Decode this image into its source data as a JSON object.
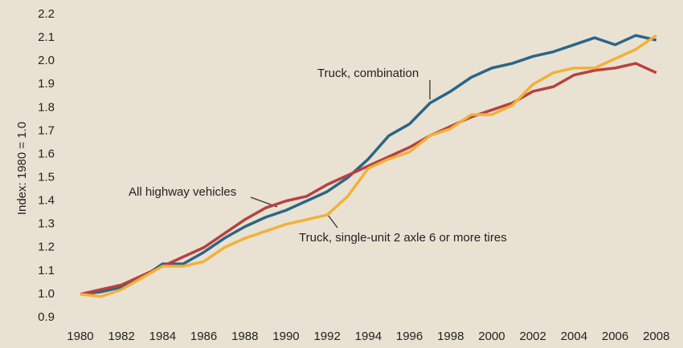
{
  "chart_data": {
    "type": "line",
    "y_label": "Index: 1980 = 1.0",
    "x": [
      1980,
      1981,
      1982,
      1983,
      1984,
      1985,
      1986,
      1987,
      1988,
      1989,
      1990,
      1991,
      1992,
      1993,
      1994,
      1995,
      1996,
      1997,
      1998,
      1999,
      2000,
      2001,
      2002,
      2003,
      2004,
      2005,
      2006,
      2007,
      2008
    ],
    "series": [
      {
        "name": "Truck, combination",
        "color": "#2b6687",
        "values": [
          1.0,
          1.01,
          1.03,
          1.07,
          1.13,
          1.13,
          1.18,
          1.24,
          1.29,
          1.33,
          1.36,
          1.4,
          1.44,
          1.5,
          1.58,
          1.68,
          1.73,
          1.82,
          1.87,
          1.93,
          1.97,
          1.99,
          2.02,
          2.04,
          2.07,
          2.1,
          2.07,
          2.11,
          2.09
        ]
      },
      {
        "name": "All highway vehicles",
        "color": "#b8413f",
        "values": [
          1.0,
          1.02,
          1.04,
          1.08,
          1.12,
          1.16,
          1.2,
          1.26,
          1.32,
          1.37,
          1.4,
          1.42,
          1.47,
          1.51,
          1.55,
          1.59,
          1.63,
          1.68,
          1.72,
          1.76,
          1.79,
          1.82,
          1.87,
          1.89,
          1.94,
          1.96,
          1.97,
          1.99,
          1.95
        ]
      },
      {
        "name": "Truck, single-unit 2 axle 6 or more tires",
        "color": "#f1b13a",
        "values": [
          1.0,
          0.99,
          1.02,
          1.07,
          1.12,
          1.12,
          1.14,
          1.2,
          1.24,
          1.27,
          1.3,
          1.32,
          1.34,
          1.42,
          1.54,
          1.58,
          1.61,
          1.68,
          1.71,
          1.77,
          1.77,
          1.81,
          1.9,
          1.95,
          1.97,
          1.97,
          2.01,
          2.05,
          2.11
        ]
      }
    ],
    "xlim": [
      1979.4,
      2008.9
    ],
    "xticks": [
      1980,
      1982,
      1984,
      1986,
      1988,
      1990,
      1992,
      1994,
      1996,
      1998,
      2000,
      2002,
      2004,
      2006,
      2008
    ],
    "ylim": [
      0.9,
      2.2
    ],
    "yticks": [
      0.9,
      {
        "value": 1,
        "label": "1.0"
      },
      1.1,
      1.2,
      1.3,
      1.4,
      1.5,
      1.6,
      1.7,
      1.8,
      1.9,
      {
        "value": 2,
        "label": "2.0"
      },
      2.1,
      2.2
    ]
  }
}
